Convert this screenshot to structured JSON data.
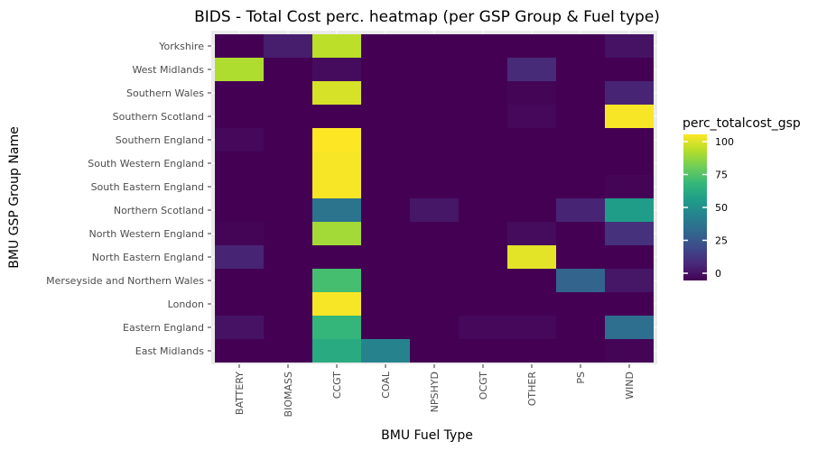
{
  "chart_data": {
    "type": "heatmap",
    "title": "BIDS - Total Cost perc. heatmap (per GSP Group & Fuel type)",
    "xlabel": "BMU Fuel Type",
    "ylabel": "BMU GSP Group Name",
    "x_categories": [
      "BATTERY",
      "BIOMASS",
      "CCGT",
      "COAL",
      "NPSHYD",
      "OCGT",
      "OTHER",
      "PS",
      "WIND"
    ],
    "y_categories": [
      "Yorkshire",
      "West Midlands",
      "Southern Wales",
      "Southern Scotland",
      "Southern England",
      "South Western England",
      "South Eastern England",
      "Northern Scotland",
      "North Western England",
      "North Eastern England",
      "Merseyside and Northern Wales",
      "London",
      "Eastern England",
      "East Midlands"
    ],
    "values": [
      [
        0,
        8,
        90,
        0,
        0,
        0,
        0,
        0,
        5
      ],
      [
        88,
        0,
        3,
        0,
        0,
        0,
        12,
        0,
        0
      ],
      [
        0,
        0,
        94,
        0,
        0,
        0,
        1,
        0,
        10
      ],
      [
        0,
        0,
        0,
        0,
        0,
        0,
        2,
        0,
        99
      ],
      [
        2,
        0,
        100,
        0,
        0,
        0,
        0,
        0,
        0
      ],
      [
        0,
        0,
        99,
        0,
        0,
        0,
        0,
        0,
        0
      ],
      [
        0,
        0,
        99,
        0,
        0,
        0,
        0,
        0,
        1
      ],
      [
        0,
        0,
        38,
        0,
        6,
        0,
        0,
        10,
        55
      ],
      [
        1,
        0,
        86,
        0,
        0,
        0,
        3,
        0,
        14
      ],
      [
        10,
        0,
        0,
        0,
        0,
        0,
        96,
        0,
        0
      ],
      [
        0,
        0,
        70,
        0,
        0,
        0,
        0,
        32,
        6
      ],
      [
        0,
        0,
        99,
        0,
        0,
        0,
        0,
        0,
        0
      ],
      [
        5,
        0,
        66,
        0,
        0,
        2,
        2,
        0,
        36
      ],
      [
        0,
        0,
        61,
        45,
        0,
        0,
        0,
        0,
        1
      ]
    ],
    "colorbar": {
      "title": "perc_totalcost_gsp",
      "min": 0,
      "max": 100,
      "ticks": [
        0,
        25,
        50,
        75,
        100
      ],
      "palette": "viridis"
    },
    "legend_position": "right",
    "grid": true
  },
  "colors": {
    "panel_background": "#ebebeb",
    "grid": "#ffffff",
    "viridis": [
      "#440154",
      "#482878",
      "#3e4989",
      "#31688e",
      "#26828e",
      "#1f9e89",
      "#35b779",
      "#6ece58",
      "#b5de2b",
      "#fde725"
    ]
  }
}
